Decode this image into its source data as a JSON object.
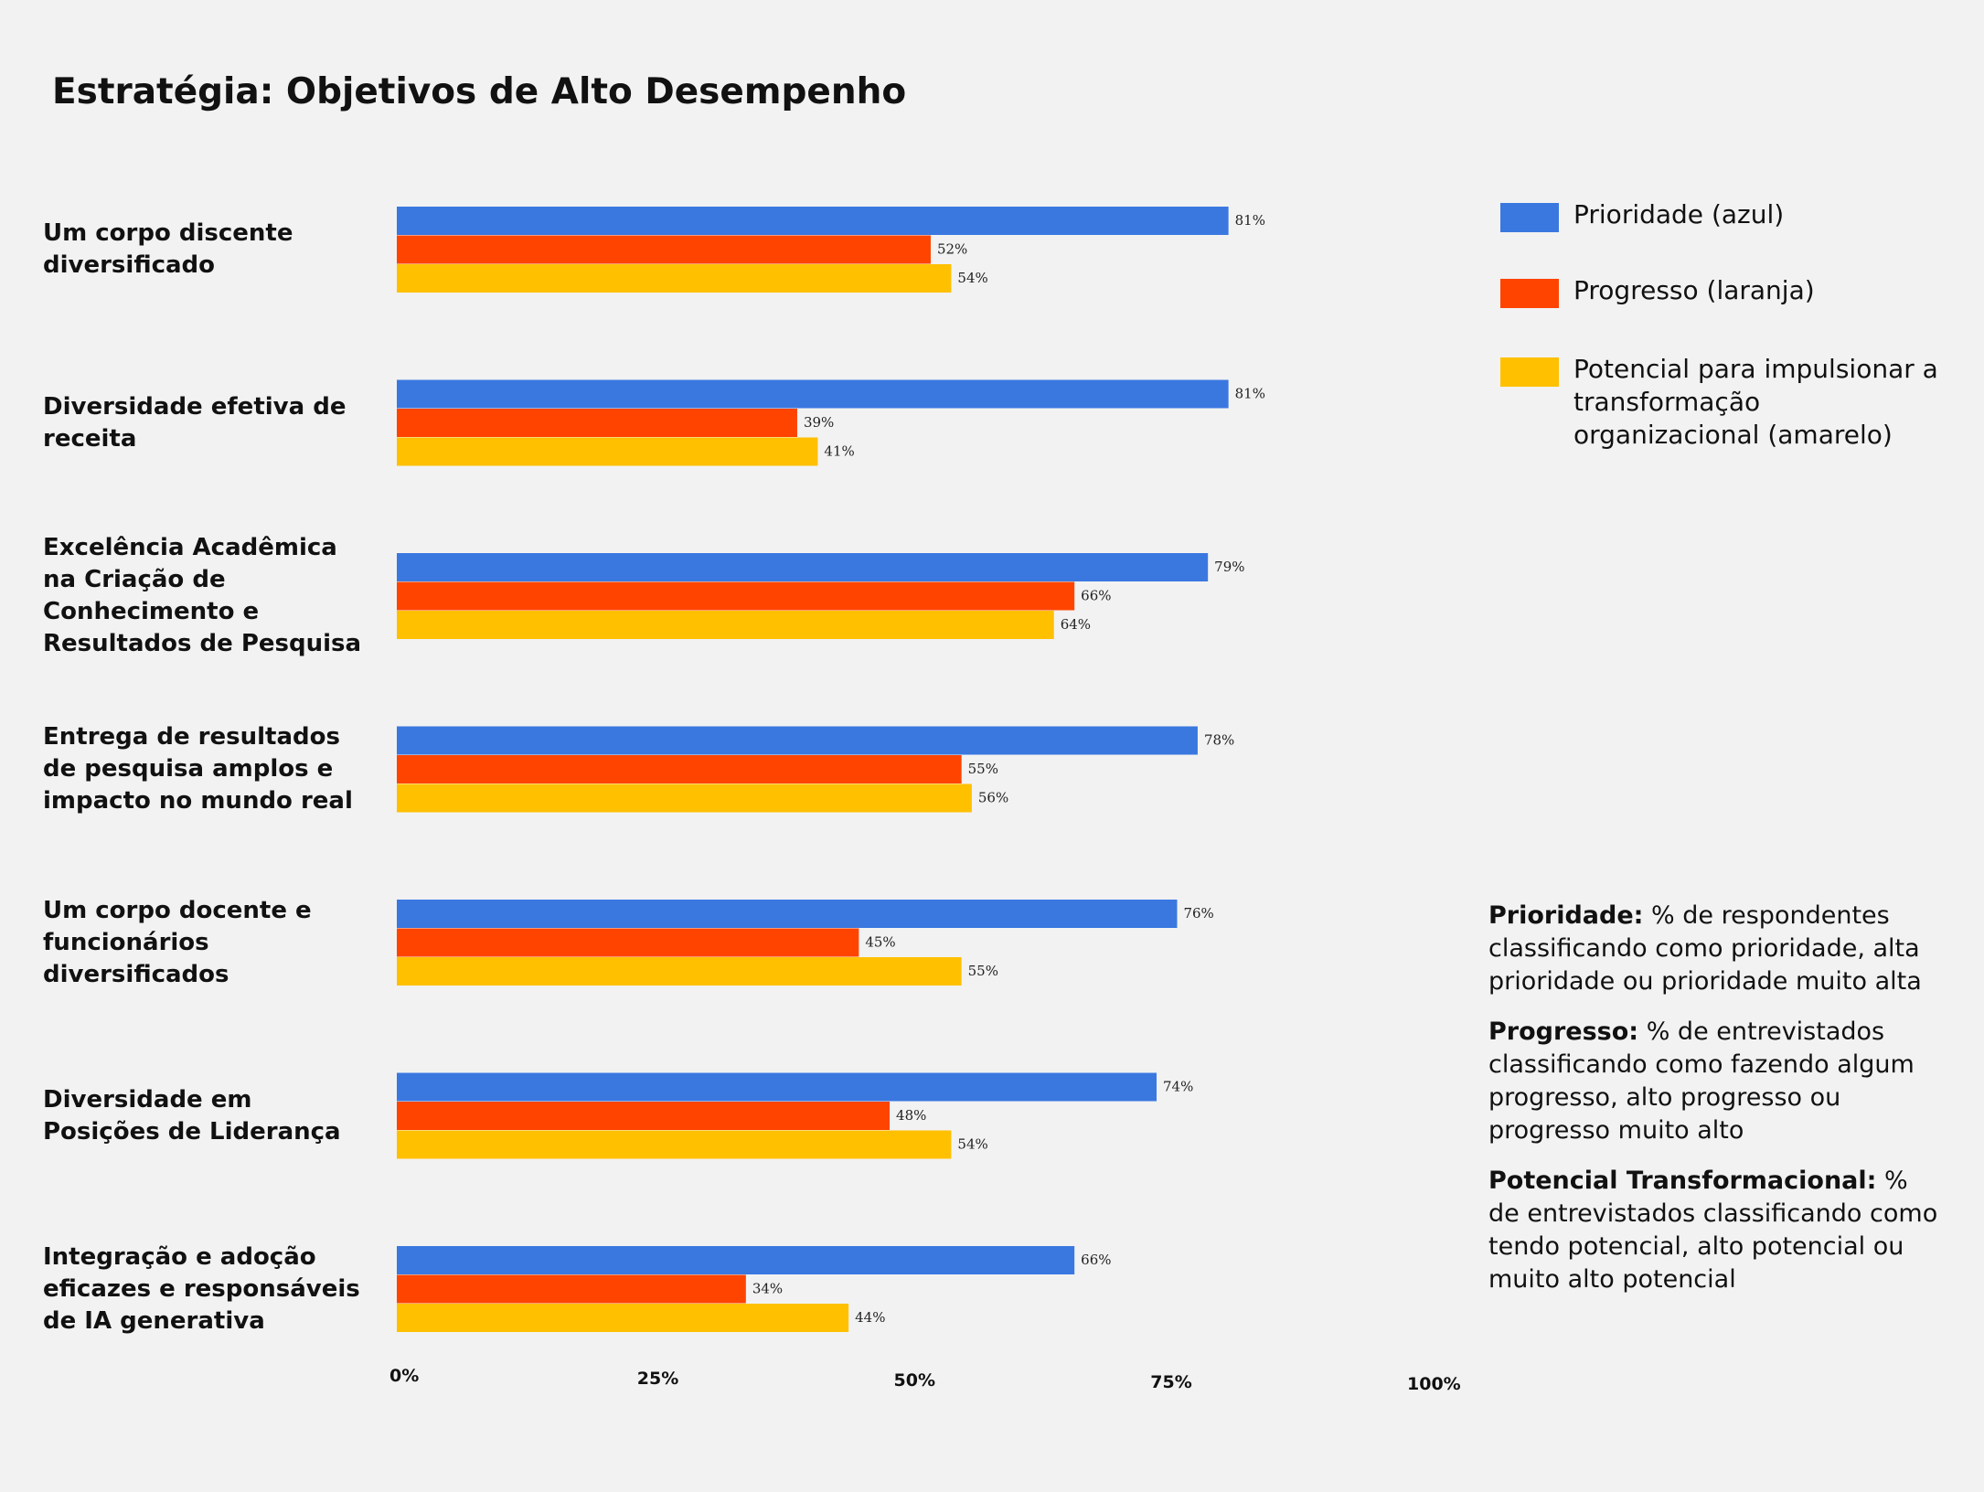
{
  "title": "Estratégia: Objetivos de Alto Desempenho",
  "colors": {
    "prioridade": "#3a78e0",
    "progresso": "#ff4400",
    "potencial": "#ffc000"
  },
  "legend": [
    {
      "label": "Prioridade (azul)",
      "color": "#3a78e0"
    },
    {
      "label": "Progresso (laranja)",
      "color": "#ff4400"
    },
    {
      "label": "Potencial para impulsionar a transformação organizacional (amarelo)",
      "color": "#ffc000"
    }
  ],
  "notes": [
    {
      "term": "Prioridade:",
      "text": " % de respondentes classificando como prioridade, alta prioridade ou prioridade muito alta"
    },
    {
      "term": "Progresso:",
      "text": " % de entrevistados classificando como fazendo algum progresso, alto progresso ou progresso muito alto"
    },
    {
      "term": "Potencial Transformacional:",
      "text": " % de entrevistados classificando como tendo potencial, alto potencial ou muito alto potencial"
    }
  ],
  "chart_data": {
    "type": "bar",
    "orientation": "horizontal",
    "title": "Estratégia: Objetivos de Alto Desempenho",
    "categories": [
      "Um corpo discente diversificado",
      "Diversidade efetiva de receita",
      "Excelência Acadêmica na Criação de Conhecimento e Resultados de Pesquisa",
      "Entrega de resultados de pesquisa amplos e impacto no mundo real",
      "Um corpo docente e funcionários diversificados",
      "Diversidade em Posições de Liderança",
      "Integração e adoção eficazes e responsáveis de IA generativa"
    ],
    "series": [
      {
        "name": "Prioridade (azul)",
        "values": [
          81,
          81,
          79,
          78,
          76,
          74,
          66
        ]
      },
      {
        "name": "Progresso (laranja)",
        "values": [
          52,
          39,
          66,
          55,
          45,
          48,
          34
        ]
      },
      {
        "name": "Potencial para impulsionar a transformação organizacional (amarelo)",
        "values": [
          54,
          41,
          64,
          56,
          55,
          54,
          44
        ]
      }
    ],
    "xlim": [
      0,
      100
    ],
    "xticks": [
      0,
      25,
      50,
      75,
      100
    ],
    "xtick_labels": [
      "0%",
      "25%",
      "50%",
      "75%",
      "100%"
    ],
    "value_suffix": "%",
    "grid": false
  }
}
